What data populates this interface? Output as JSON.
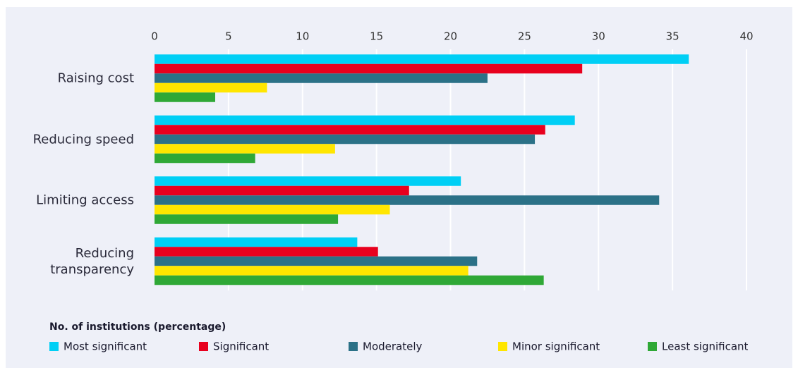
{
  "chart_data": {
    "type": "bar",
    "orientation": "horizontal",
    "categories": [
      "Raising cost",
      "Reducing speed",
      "Limiting access",
      "Reducing transparency"
    ],
    "series": [
      {
        "name": "Most significant",
        "color": "#00cff5",
        "values": [
          36.1,
          28.4,
          20.7,
          13.7
        ]
      },
      {
        "name": "Significant",
        "color": "#e8001e",
        "values": [
          28.9,
          26.4,
          17.2,
          15.1
        ]
      },
      {
        "name": "Moderately",
        "color": "#2b7187",
        "values": [
          22.5,
          25.7,
          34.1,
          21.8
        ]
      },
      {
        "name": "Minor significant",
        "color": "#ffe600",
        "values": [
          7.6,
          12.2,
          15.9,
          21.2
        ]
      },
      {
        "name": "Least significant",
        "color": "#2fa836",
        "values": [
          4.1,
          6.8,
          12.4,
          26.3
        ]
      }
    ],
    "xlim": [
      0,
      40
    ],
    "xticks": [
      0,
      5,
      10,
      15,
      20,
      25,
      30,
      35,
      40
    ],
    "grid": true,
    "legend_title": "No. of institutions (percentage)",
    "legend": "bottom"
  }
}
